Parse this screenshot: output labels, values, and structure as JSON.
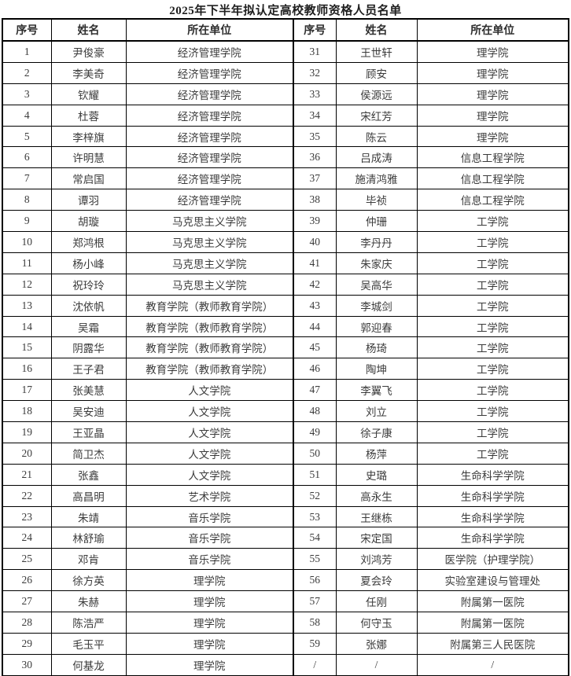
{
  "title": "2025年下半年拟认定高校教师资格人员名单",
  "colors": {
    "border": "#000000",
    "text": "#3b3b3b",
    "background": "#ffffff"
  },
  "table": {
    "headers": [
      "序号",
      "姓名",
      "所在单位",
      "序号",
      "姓名",
      "所在单位"
    ],
    "rows": [
      [
        "1",
        "尹俊豪",
        "经济管理学院",
        "31",
        "王世轩",
        "理学院"
      ],
      [
        "2",
        "李美奇",
        "经济管理学院",
        "32",
        "顾安",
        "理学院"
      ],
      [
        "3",
        "钦耀",
        "经济管理学院",
        "33",
        "侯源远",
        "理学院"
      ],
      [
        "4",
        "杜蓉",
        "经济管理学院",
        "34",
        "宋红芳",
        "理学院"
      ],
      [
        "5",
        "李梓旗",
        "经济管理学院",
        "35",
        "陈云",
        "理学院"
      ],
      [
        "6",
        "许明慧",
        "经济管理学院",
        "36",
        "吕成涛",
        "信息工程学院"
      ],
      [
        "7",
        "常启国",
        "经济管理学院",
        "37",
        "施清鸿雅",
        "信息工程学院"
      ],
      [
        "8",
        "谭羽",
        "经济管理学院",
        "38",
        "毕祯",
        "信息工程学院"
      ],
      [
        "9",
        "胡璇",
        "马克思主义学院",
        "39",
        "仲珊",
        "工学院"
      ],
      [
        "10",
        "郑鸿根",
        "马克思主义学院",
        "40",
        "李丹丹",
        "工学院"
      ],
      [
        "11",
        "杨小峰",
        "马克思主义学院",
        "41",
        "朱家庆",
        "工学院"
      ],
      [
        "12",
        "祝玲玲",
        "马克思主义学院",
        "42",
        "吴高华",
        "工学院"
      ],
      [
        "13",
        "沈依帆",
        "教育学院（教师教育学院）",
        "43",
        "李城剑",
        "工学院"
      ],
      [
        "14",
        "吴霜",
        "教育学院（教师教育学院）",
        "44",
        "郭迎春",
        "工学院"
      ],
      [
        "15",
        "阴露华",
        "教育学院（教师教育学院）",
        "45",
        "杨琦",
        "工学院"
      ],
      [
        "16",
        "王子君",
        "教育学院（教师教育学院）",
        "46",
        "陶坤",
        "工学院"
      ],
      [
        "17",
        "张美慧",
        "人文学院",
        "47",
        "李翼飞",
        "工学院"
      ],
      [
        "18",
        "吴安迪",
        "人文学院",
        "48",
        "刘立",
        "工学院"
      ],
      [
        "19",
        "王亚晶",
        "人文学院",
        "49",
        "徐子康",
        "工学院"
      ],
      [
        "20",
        "简卫杰",
        "人文学院",
        "50",
        "杨萍",
        "工学院"
      ],
      [
        "21",
        "张鑫",
        "人文学院",
        "51",
        "史璐",
        "生命科学学院"
      ],
      [
        "22",
        "高昌明",
        "艺术学院",
        "52",
        "高永生",
        "生命科学学院"
      ],
      [
        "23",
        "朱靖",
        "音乐学院",
        "53",
        "王继栋",
        "生命科学学院"
      ],
      [
        "24",
        "林舒瑜",
        "音乐学院",
        "54",
        "宋定国",
        "生命科学学院"
      ],
      [
        "25",
        "邓肯",
        "音乐学院",
        "55",
        "刘鸿芳",
        "医学院（护理学院）"
      ],
      [
        "26",
        "徐方英",
        "理学院",
        "56",
        "夏会玲",
        "实验室建设与管理处"
      ],
      [
        "27",
        "朱赫",
        "理学院",
        "57",
        "任刚",
        "附属第一医院"
      ],
      [
        "28",
        "陈浩严",
        "理学院",
        "58",
        "何守玉",
        "附属第一医院"
      ],
      [
        "29",
        "毛玉平",
        "理学院",
        "59",
        "张娜",
        "附属第三人民医院"
      ],
      [
        "30",
        "何基龙",
        "理学院",
        "/",
        "/",
        "/"
      ]
    ]
  }
}
